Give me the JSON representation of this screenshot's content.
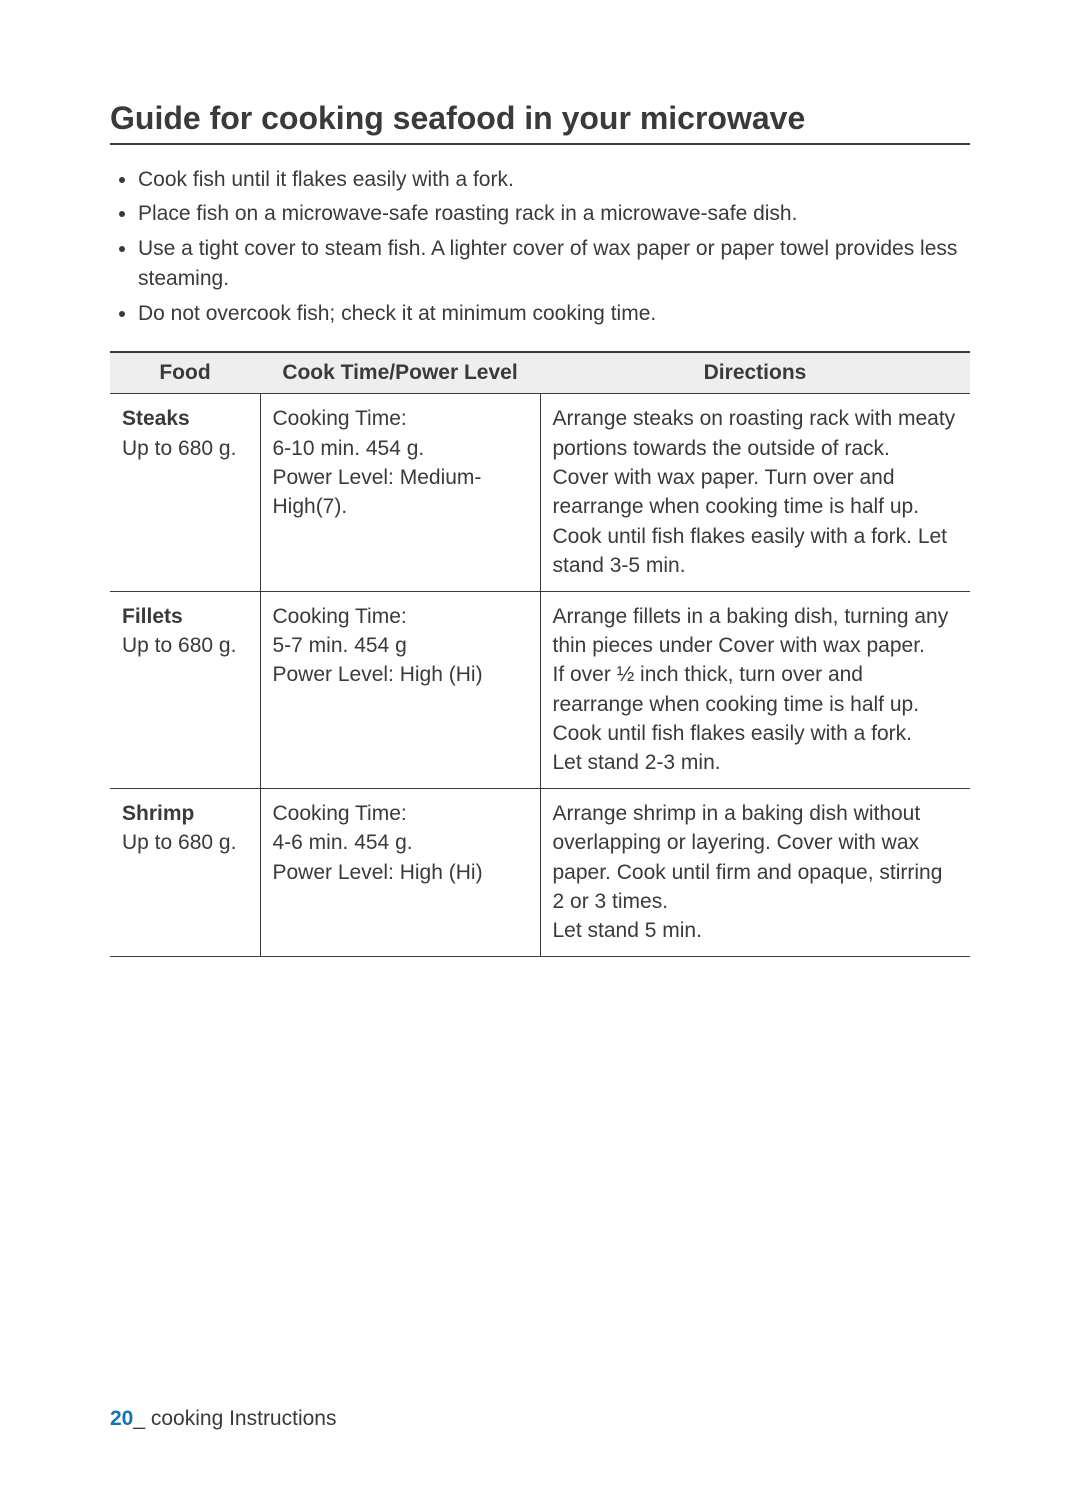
{
  "title": "Guide for cooking seafood in your microwave",
  "tips": [
    "Cook fish until it flakes easily with a fork.",
    "Place fish on a microwave-safe roasting rack in a microwave-safe dish.",
    "Use a tight cover to steam fish. A lighter cover of wax paper or paper towel provides less steaming.",
    "Do not overcook fish; check it at minimum cooking time."
  ],
  "table": {
    "headers": {
      "food": "Food",
      "cook": "Cook Time/Power Level",
      "directions": "Directions"
    },
    "rows": [
      {
        "food_name": "Steaks",
        "food_sub": "Up to 680 g.",
        "cook_l1": "Cooking Time:",
        "cook_l2": "6-10 min. 454 g.",
        "cook_l3": "Power Level: Medium-High(7).",
        "dir_p1": "Arrange steaks on roasting rack with meaty portions towards the outside of rack.",
        "dir_p2": "Cover with wax paper. Turn over and rearrange when cooking time is half up. Cook until fish flakes easily with a fork. Let stand 3-5 min."
      },
      {
        "food_name": "Fillets",
        "food_sub": "Up to 680 g.",
        "cook_l1": "Cooking Time:",
        "cook_l2": "5-7 min. 454 g",
        "cook_l3": "Power Level: High (Hi)",
        "dir_p1": "Arrange fillets in a baking dish, turning any thin pieces under Cover with wax paper.",
        "dir_p2": "If over ½ inch thick, turn over and rearrange when cooking time is half up. Cook until fish flakes easily with a fork.",
        "dir_p3": "Let stand 2-3 min."
      },
      {
        "food_name": "Shrimp",
        "food_sub": "Up to 680 g.",
        "cook_l1": "Cooking Time:",
        "cook_l2": "4-6 min. 454 g.",
        "cook_l3": "Power Level: High (Hi)",
        "dir_p1": "Arrange shrimp in a baking dish without overlapping or layering. Cover with wax paper. Cook until firm and opaque, stirring 2 or 3 times.",
        "dir_p2": "Let stand 5 min."
      }
    ]
  },
  "footer": {
    "pagenum": "20",
    "sep": "_ ",
    "section": "cooking Instructions"
  }
}
